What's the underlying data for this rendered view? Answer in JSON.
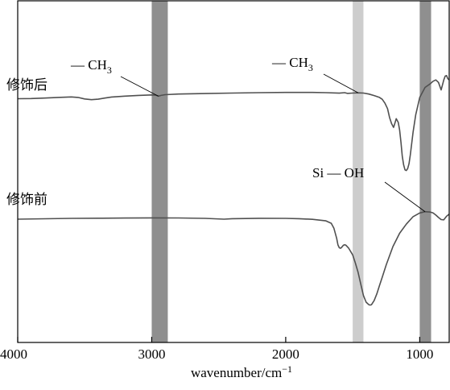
{
  "chart_data": {
    "type": "line",
    "xlabel": "wavenumber/cm",
    "xlabel_sup": "−1",
    "xlim": [
      4000,
      780
    ],
    "x_ticks": [
      4000,
      3000,
      2000,
      1000
    ],
    "x_tick_labels": [
      "4000",
      "3000",
      "2000",
      "1000"
    ],
    "y_ticks": false,
    "grid": false,
    "bands": [
      {
        "from": 3000,
        "to": 2880,
        "color": "#8f8f8f"
      },
      {
        "from": 1500,
        "to": 1420,
        "color": "#cdcdcd"
      },
      {
        "from": 1000,
        "to": 915,
        "color": "#8f8f8f"
      }
    ],
    "series": [
      {
        "name": "修饰后",
        "x": [
          4000,
          3900,
          3800,
          3700,
          3600,
          3550,
          3500,
          3450,
          3400,
          3350,
          3300,
          3200,
          3100,
          3000,
          2970,
          2950,
          2930,
          2900,
          2800,
          2600,
          2400,
          2200,
          2000,
          1800,
          1700,
          1600,
          1560,
          1540,
          1500,
          1460,
          1420,
          1380,
          1340,
          1300,
          1280,
          1260,
          1240,
          1225,
          1210,
          1195,
          1185,
          1175,
          1160,
          1150,
          1140,
          1130,
          1120,
          1110,
          1100,
          1090,
          1080,
          1070,
          1060,
          1050,
          1030,
          1000,
          960,
          920,
          900,
          880,
          860,
          840,
          820,
          810,
          800,
          790,
          780
        ],
        "y": [
          1.0,
          1.1,
          1.5,
          2.0,
          2.4,
          2.0,
          0.8,
          0.2,
          0.6,
          1.5,
          2.3,
          3.0,
          3.6,
          4.0,
          3.8,
          3.0,
          3.6,
          4.2,
          4.7,
          5.1,
          5.5,
          5.8,
          6.0,
          6.0,
          5.8,
          5.4,
          5.8,
          5.2,
          5.5,
          5.7,
          5.5,
          4.7,
          3.5,
          2.0,
          0.5,
          -2.5,
          -7.0,
          -14.0,
          -19.0,
          -22.0,
          -18.5,
          -15.0,
          -18.0,
          -24.0,
          -34.0,
          -45.0,
          -52.0,
          -56.0,
          -56.5,
          -55.0,
          -51.0,
          -44.0,
          -35.0,
          -26.0,
          -12.0,
          2.0,
          10.0,
          13.0,
          15.0,
          16.0,
          14.0,
          8.0,
          16.0,
          19.0,
          19.5,
          17.0,
          16.0
        ]
      },
      {
        "name": "修饰前",
        "x": [
          4000,
          3800,
          3600,
          3400,
          3200,
          3000,
          2800,
          2600,
          2460,
          2400,
          2200,
          2000,
          1900,
          1800,
          1700,
          1660,
          1640,
          1620,
          1610,
          1600,
          1590,
          1580,
          1570,
          1560,
          1550,
          1530,
          1500,
          1480,
          1460,
          1440,
          1420,
          1400,
          1380,
          1370,
          1360,
          1340,
          1320,
          1300,
          1280,
          1250,
          1200,
          1150,
          1100,
          1050,
          1000,
          960,
          920,
          900,
          880,
          860,
          840,
          820,
          800,
          780
        ],
        "y": [
          0.0,
          0.5,
          1.0,
          1.2,
          1.4,
          1.6,
          1.5,
          1.0,
          0.0,
          0.6,
          1.1,
          1.0,
          0.6,
          -0.2,
          -2.0,
          -5.0,
          -11.0,
          -23.0,
          -31.0,
          -34.5,
          -35.0,
          -33.5,
          -31.5,
          -30.8,
          -31.5,
          -35.0,
          -43.0,
          -53.0,
          -64.0,
          -78.0,
          -92.0,
          -100.0,
          -103.0,
          -103.5,
          -103.0,
          -98.0,
          -90.0,
          -80.0,
          -70.0,
          -55.0,
          -33.0,
          -17.0,
          -6.0,
          3.0,
          7.5,
          9.0,
          8.5,
          7.5,
          5.0,
          2.0,
          -0.5,
          -0.8,
          3.5,
          6.0
        ]
      }
    ],
    "annotations": [
      {
        "text": "— CH",
        "sub": "3",
        "points_to": {
          "series": 0,
          "x": 2950
        }
      },
      {
        "text": "— CH",
        "sub": "3",
        "points_to": {
          "series": 0,
          "x": 1460
        }
      },
      {
        "text": "Si — OH",
        "points_to": {
          "series": 1,
          "x": 960
        }
      }
    ]
  }
}
